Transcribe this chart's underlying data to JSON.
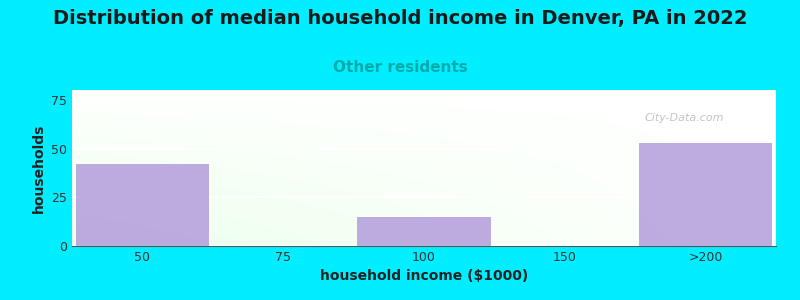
{
  "title": "Distribution of median household income in Denver, PA in 2022",
  "subtitle": "Other residents",
  "xlabel": "household income ($1000)",
  "ylabel": "households",
  "categories": [
    "50",
    "75",
    "100",
    "150",
    ">200"
  ],
  "values": [
    42,
    0,
    15,
    0,
    53
  ],
  "bar_color": "#b39ddb",
  "bar_width": 0.95,
  "ylim": [
    0,
    80
  ],
  "yticks": [
    0,
    25,
    50,
    75
  ],
  "background_color": "#00eeff",
  "title_fontsize": 14,
  "subtitle_fontsize": 11,
  "subtitle_color": "#00aaaa",
  "axis_label_fontsize": 10,
  "tick_fontsize": 9,
  "watermark": "City-Data.com"
}
